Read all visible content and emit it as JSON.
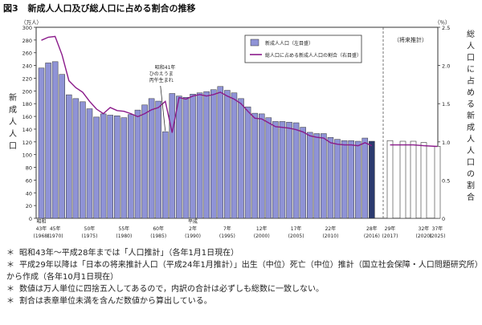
{
  "figure_label": "図3",
  "title": "新成人人口及び総人口に占める割合の推移",
  "notes": [
    "昭和43年〜平成28年までは「人口推計」（各年1月1日現在）",
    "平成29年以降は「日本の将来推計人口（平成24年1月推計）」出生（中位）死亡（中位）推計（国立社会保障・人口問題研究所）",
    "から作成（各年10月1日現在）",
    "数値は万人単位に四捨五入してあるので，内訳の合計は必ずしも総数に一致しない。",
    "割合は表章単位未満を含んだ数値から算出している。"
  ],
  "note_marker": "＊",
  "chart_data": {
    "type": "bar+line",
    "left_axis": {
      "unit": "（万人）",
      "label": "新成人人口",
      "min": 0,
      "max": 300,
      "ticks": [
        0,
        20,
        40,
        60,
        80,
        100,
        120,
        140,
        160,
        180,
        200,
        220,
        240,
        260,
        280,
        300
      ]
    },
    "right_axis": {
      "unit": "（％）",
      "label": "総人口に占める新成人人口の割合",
      "min": 0,
      "max": 2.5,
      "ticks": [
        "0",
        "0.5",
        "1.0",
        "1.5",
        "2.0",
        "2.5"
      ]
    },
    "legend": {
      "bar": "新成人人口（左目盛）",
      "line": "総人口に占める新成人人口の割合（右目盛）",
      "position": "top-right"
    },
    "projection_label": "（将来推計）",
    "annotation": {
      "lines": [
        "昭和41年",
        "ひのえうま",
        "丙午生まれ"
      ]
    },
    "years": [
      1968,
      1969,
      1970,
      1971,
      1972,
      1973,
      1974,
      1975,
      1976,
      1977,
      1978,
      1979,
      1980,
      1981,
      1982,
      1983,
      1984,
      1985,
      1986,
      1987,
      1988,
      1989,
      1990,
      1991,
      1992,
      1993,
      1994,
      1995,
      1996,
      1997,
      1998,
      1999,
      2000,
      2001,
      2002,
      2003,
      2004,
      2005,
      2006,
      2007,
      2008,
      2009,
      2010,
      2011,
      2012,
      2013,
      2014,
      2015,
      2016
    ],
    "population": [
      236,
      244,
      246,
      226,
      194,
      188,
      183,
      172,
      159,
      164,
      162,
      161,
      158,
      163,
      170,
      178,
      188,
      184,
      136,
      196,
      192,
      190,
      195,
      197,
      199,
      202,
      207,
      201,
      197,
      188,
      175,
      165,
      164,
      158,
      152,
      152,
      151,
      150,
      143,
      135,
      133,
      133,
      127,
      124,
      122,
      122,
      121,
      126,
      121
    ],
    "ratio": [
      2.33,
      2.37,
      2.38,
      2.14,
      1.8,
      1.71,
      1.65,
      1.53,
      1.43,
      1.37,
      1.45,
      1.41,
      1.4,
      1.37,
      1.33,
      1.37,
      1.42,
      1.45,
      1.53,
      1.12,
      1.58,
      1.56,
      1.6,
      1.62,
      1.6,
      1.62,
      1.65,
      1.6,
      1.56,
      1.5,
      1.4,
      1.31,
      1.3,
      1.25,
      1.2,
      1.19,
      1.18,
      1.16,
      1.13,
      1.08,
      1.06,
      1.05,
      0.99,
      0.97,
      0.96,
      0.96,
      0.95,
      0.99,
      0.95
    ],
    "projection": [
      {
        "year": 2017,
        "population": 122,
        "ratio": 0.96
      },
      {
        "year": 2018,
        "population": 121,
        "ratio": 0.96
      },
      {
        "year": 2019,
        "population": 121,
        "ratio": 0.96
      },
      {
        "year": 2020,
        "population": 119,
        "ratio": 0.95
      },
      {
        "year": 2025,
        "population": 113,
        "ratio": 0.94
      }
    ],
    "x_labels": [
      {
        "year": 1968,
        "era": "昭和",
        "top": "43年",
        "bottom": "(1968)"
      },
      {
        "year": 1970,
        "top": "45年",
        "bottom": "(1970)"
      },
      {
        "year": 1975,
        "top": "50年",
        "bottom": "(1975)"
      },
      {
        "year": 1980,
        "top": "55年",
        "bottom": "(1980)"
      },
      {
        "year": 1985,
        "top": "60年",
        "bottom": "(1985)"
      },
      {
        "year": 1990,
        "era": "平成",
        "top": "2年",
        "bottom": "(1990)"
      },
      {
        "year": 1995,
        "top": "7年",
        "bottom": "(1995)"
      },
      {
        "year": 2000,
        "top": "12年",
        "bottom": "(2000)"
      },
      {
        "year": 2005,
        "top": "17年",
        "bottom": "(2005)"
      },
      {
        "year": 2010,
        "top": "22年",
        "bottom": "(2010)"
      },
      {
        "year": 2016,
        "top": "28年",
        "bottom": "(2016)"
      },
      {
        "year": 2017,
        "top": "29年",
        "bottom": "(2017)"
      },
      {
        "year": 2020,
        "top": "32年",
        "bottom": "(2020)"
      },
      {
        "year": 2025,
        "top": "37年",
        "bottom": "(2025)"
      }
    ],
    "colors": {
      "bar": "#8f93d6",
      "bar_last": "#2b3a6e",
      "line": "#8a1a8a",
      "projection_bar": "#ffffff",
      "border": "#333333"
    }
  }
}
